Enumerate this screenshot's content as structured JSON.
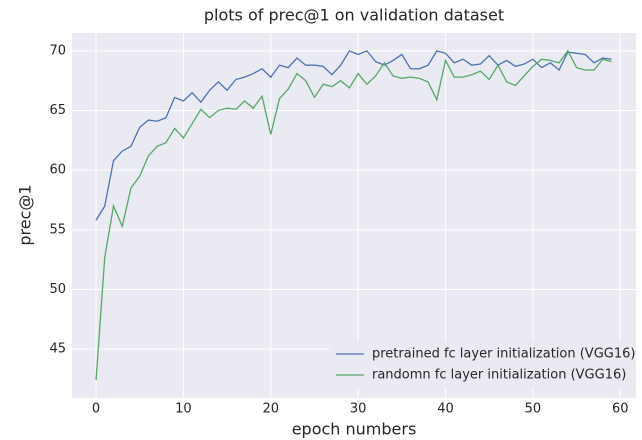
{
  "chart_data": {
    "type": "line",
    "title": "plots of prec@1 on validation dataset",
    "x_label": "epoch numbers",
    "y_label": "prec@1",
    "x": [
      0,
      1,
      2,
      3,
      4,
      5,
      6,
      7,
      8,
      9,
      10,
      11,
      12,
      13,
      14,
      15,
      16,
      17,
      18,
      19,
      20,
      21,
      22,
      23,
      24,
      25,
      26,
      27,
      28,
      29,
      30,
      31,
      32,
      33,
      34,
      35,
      36,
      37,
      38,
      39,
      40,
      41,
      42,
      43,
      44,
      45,
      46,
      47,
      48,
      49,
      50,
      51,
      52,
      53,
      54,
      55,
      56,
      57,
      58,
      59
    ],
    "series": [
      {
        "name": "pretrained fc layer initialization (VGG16)",
        "color": "#4c72b0",
        "values": [
          55.8,
          57,
          60.8,
          61.6,
          62,
          63.6,
          64.2,
          64.1,
          64.4,
          66.1,
          65.8,
          66.5,
          65.7,
          66.7,
          67.4,
          66.7,
          67.6,
          67.8,
          68.1,
          68.5,
          67.8,
          68.8,
          68.6,
          69.4,
          68.8,
          68.8,
          68.7,
          68.0,
          68.8,
          70.0,
          69.7,
          70.0,
          69.1,
          68.8,
          69.2,
          69.7,
          68.5,
          68.5,
          68.8,
          70.0,
          69.8,
          69.0,
          69.3,
          68.8,
          68.9,
          69.6,
          68.8,
          69.2,
          68.7,
          68.9,
          69.3,
          68.6,
          69.0,
          68.4,
          69.9,
          69.8,
          69.7,
          69.0,
          69.4,
          69.3
        ]
      },
      {
        "name": "randomn fc layer initialization (VGG16)",
        "color": "#55a868",
        "values": [
          42.4,
          52.7,
          57,
          55.3,
          58.5,
          59.5,
          61.2,
          62,
          62.3,
          63.5,
          62.7,
          63.9,
          65.1,
          64.4,
          65,
          65.2,
          65.1,
          65.8,
          65.2,
          66.2,
          63,
          66,
          66.8,
          68.1,
          67.5,
          66.1,
          67.2,
          67,
          67.5,
          66.9,
          68.1,
          67.2,
          67.9,
          69,
          67.9,
          67.7,
          67.8,
          67.7,
          67.4,
          65.9,
          69.2,
          67.8,
          67.8,
          68,
          68.3,
          67.6,
          68.8,
          67.4,
          67.1,
          67.9,
          68.7,
          69.3,
          69.2,
          69,
          70,
          68.6,
          68.4,
          68.4,
          69.3,
          69.1
        ]
      }
    ],
    "xlim": [
      -2.75,
      61.8
    ],
    "ylim": [
      40.9,
      71.5
    ],
    "xticks": [
      0,
      10,
      20,
      30,
      40,
      50,
      60
    ],
    "yticks": [
      45,
      50,
      55,
      60,
      65,
      70
    ],
    "grid": true,
    "legend": "lower right"
  }
}
